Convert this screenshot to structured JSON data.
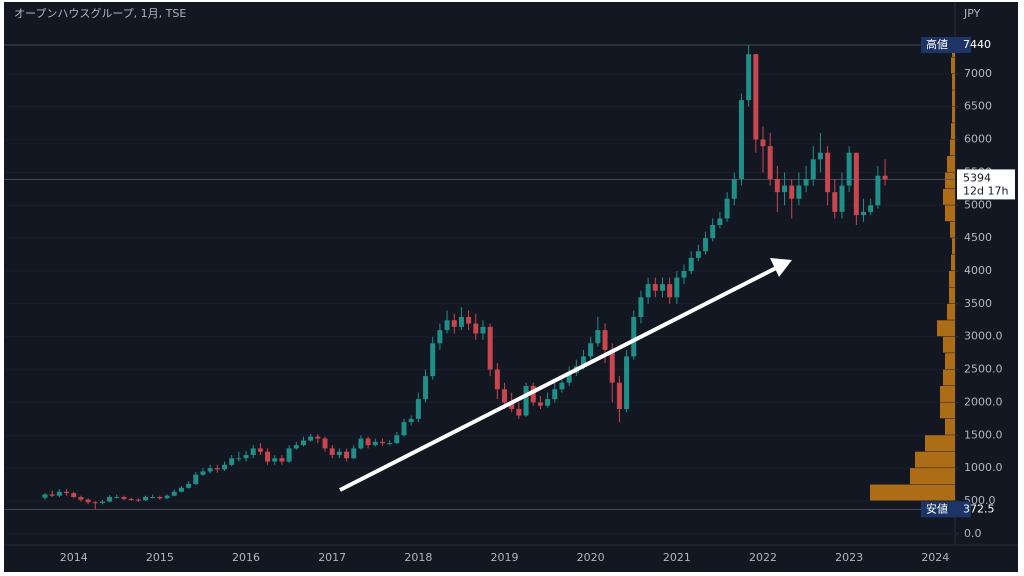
{
  "chart_data": {
    "type": "candlestick",
    "title": "オープンハウスグループ, 1月, TSE",
    "currency": "JPY",
    "categories": [
      null,
      null,
      null,
      null,
      "2014",
      null,
      null,
      null,
      null,
      null,
      null,
      null,
      null,
      null,
      null,
      null,
      "2015",
      null,
      null,
      null,
      null,
      null,
      null,
      null,
      null,
      null,
      null,
      null,
      "2016",
      null,
      null,
      null,
      null,
      null,
      null,
      null,
      null,
      null,
      null,
      null,
      "2017",
      null,
      null,
      null,
      null,
      null,
      null,
      null,
      null,
      null,
      null,
      null,
      "2018",
      null,
      null,
      null,
      null,
      null,
      null,
      null,
      null,
      null,
      null,
      null,
      "2019",
      null,
      null,
      null,
      null,
      null,
      null,
      null,
      null,
      null,
      null,
      null,
      "2020",
      null,
      null,
      null,
      null,
      null,
      null,
      null,
      null,
      null,
      null,
      null,
      "2021",
      null,
      null,
      null,
      null,
      null,
      null,
      null,
      null,
      null,
      null,
      null,
      "2022",
      null,
      null,
      null,
      null,
      null,
      null,
      null,
      null,
      null,
      null,
      null,
      "2023",
      null,
      null,
      null,
      null,
      null,
      null,
      null,
      null,
      null,
      null,
      null,
      "2024"
    ],
    "open": [
      550,
      600,
      580,
      640,
      620,
      560,
      520,
      480,
      470,
      490,
      560,
      560,
      530,
      520,
      510,
      560,
      560,
      540,
      580,
      640,
      700,
      760,
      900,
      950,
      1000,
      980,
      1050,
      1150,
      1150,
      1200,
      1300,
      1250,
      1100,
      1150,
      1100,
      1300,
      1350,
      1420,
      1480,
      1450,
      1300,
      1200,
      1250,
      1150,
      1300,
      1450,
      1350,
      1400,
      1380,
      1380,
      1500,
      1700,
      1750,
      2050,
      2400,
      2900,
      3100,
      3250,
      3150,
      3300,
      3200,
      3050,
      3150,
      2500,
      2200,
      2000,
      1900,
      1800,
      2250,
      2000,
      1950,
      2050,
      2200,
      2300,
      2450,
      2550,
      2700,
      2900,
      3100,
      2800,
      2300,
      1900,
      2700,
      3300,
      3600,
      3800,
      3700,
      3800,
      3600,
      3900,
      4000,
      4200,
      4300,
      4500,
      4700,
      4800,
      5100,
      5400,
      6600,
      7300,
      6000,
      5900,
      5400,
      5200,
      5300,
      5100,
      5300,
      5400,
      5700,
      5800,
      5200,
      4900,
      5300,
      5800,
      4850,
      4900,
      5000,
      5450,
      null,
      null,
      null,
      null,
      null,
      null,
      null
    ],
    "high": [
      620,
      660,
      680,
      680,
      640,
      580,
      540,
      500,
      520,
      590,
      600,
      580,
      550,
      540,
      580,
      600,
      580,
      600,
      670,
      730,
      800,
      940,
      1000,
      1050,
      1050,
      1100,
      1200,
      1250,
      1260,
      1350,
      1380,
      1300,
      1200,
      1200,
      1350,
      1400,
      1480,
      1520,
      1520,
      1480,
      1350,
      1300,
      1300,
      1350,
      1500,
      1480,
      1450,
      1450,
      1420,
      1550,
      1750,
      1800,
      2150,
      2500,
      3000,
      3200,
      3400,
      3350,
      3450,
      3400,
      3350,
      3250,
      3200,
      2600,
      2300,
      2150,
      2000,
      2300,
      2300,
      2100,
      2150,
      2300,
      2400,
      2550,
      2650,
      2800,
      3000,
      3300,
      3200,
      2900,
      2400,
      2800,
      3400,
      3700,
      3900,
      3900,
      3900,
      3900,
      4000,
      4100,
      4300,
      4400,
      4600,
      4800,
      4900,
      5200,
      5500,
      6700,
      7440,
      7300,
      6200,
      6100,
      5600,
      5500,
      5400,
      5500,
      5600,
      5900,
      6100,
      5900,
      5400,
      5500,
      5900,
      5800,
      5100,
      5100,
      5600,
      5700,
      null,
      null,
      null,
      null,
      null,
      null,
      null
    ],
    "low": [
      520,
      560,
      560,
      580,
      540,
      490,
      450,
      372.5,
      450,
      480,
      540,
      510,
      500,
      490,
      500,
      540,
      520,
      530,
      570,
      630,
      690,
      740,
      880,
      920,
      930,
      960,
      1030,
      1100,
      1100,
      1150,
      1200,
      1050,
      1050,
      1050,
      1080,
      1280,
      1330,
      1400,
      1380,
      1250,
      1150,
      1150,
      1100,
      1140,
      1280,
      1300,
      1330,
      1340,
      1350,
      1370,
      1480,
      1650,
      1700,
      2000,
      2350,
      2800,
      3050,
      3050,
      3100,
      3100,
      2950,
      2950,
      2400,
      2050,
      1900,
      1850,
      1750,
      1780,
      1950,
      1900,
      1920,
      2000,
      2150,
      2250,
      2400,
      2500,
      2650,
      2850,
      2600,
      2000,
      1700,
      1850,
      2650,
      3200,
      3500,
      3600,
      3600,
      3500,
      3500,
      3800,
      3950,
      4150,
      4250,
      4450,
      4650,
      4750,
      5000,
      5300,
      6500,
      5800,
      5500,
      5300,
      4900,
      5000,
      4800,
      5000,
      5200,
      5300,
      5500,
      5000,
      4800,
      4800,
      5200,
      4700,
      4750,
      4850,
      4950,
      5300,
      null,
      null,
      null,
      null,
      null,
      null,
      null
    ],
    "close": [
      600,
      580,
      640,
      620,
      560,
      520,
      480,
      470,
      490,
      560,
      560,
      530,
      520,
      510,
      560,
      560,
      540,
      580,
      640,
      700,
      760,
      900,
      950,
      1000,
      980,
      1050,
      1150,
      1150,
      1200,
      1300,
      1250,
      1100,
      1150,
      1100,
      1300,
      1350,
      1420,
      1480,
      1450,
      1300,
      1200,
      1250,
      1150,
      1300,
      1450,
      1350,
      1400,
      1380,
      1380,
      1500,
      1700,
      1750,
      2050,
      2400,
      2900,
      3100,
      3250,
      3150,
      3300,
      3200,
      3050,
      3150,
      2500,
      2200,
      2000,
      1900,
      1800,
      2250,
      2000,
      1950,
      2050,
      2200,
      2300,
      2450,
      2550,
      2700,
      2900,
      3100,
      2800,
      2300,
      1900,
      2700,
      3300,
      3600,
      3800,
      3700,
      3800,
      3600,
      3900,
      4000,
      4200,
      4300,
      4500,
      4700,
      4800,
      5100,
      5400,
      6600,
      7300,
      6000,
      5900,
      5400,
      5200,
      5300,
      5100,
      5300,
      5400,
      5700,
      5800,
      5200,
      4900,
      5300,
      5800,
      4850,
      4900,
      5000,
      5450,
      5394,
      null,
      null,
      null,
      null,
      null,
      null,
      null
    ],
    "up_color": "#1f8f88",
    "down_color": "#c8474f",
    "ylim": [
      -170,
      7820
    ],
    "yticks": [
      {
        "value": 0,
        "label": "0.0"
      },
      {
        "value": 500,
        "label": "500.0"
      },
      {
        "value": 1000,
        "label": "1000.0"
      },
      {
        "value": 1500,
        "label": "1500.0"
      },
      {
        "value": 2000,
        "label": "2000.0"
      },
      {
        "value": 2500,
        "label": "2500.0"
      },
      {
        "value": 3000,
        "label": "3000.0"
      },
      3500,
      4000,
      4500,
      5000,
      5500,
      6000,
      6500,
      7000
    ],
    "grid": true,
    "high_marker": {
      "label": "高値",
      "value": 7440
    },
    "low_marker": {
      "label": "安値",
      "value": 372.5
    },
    "last": {
      "value": 5394,
      "countdown": "12d 17h"
    },
    "volume_profile": {
      "color": "#c97c14",
      "bins": [
        500,
        750,
        1000,
        1250,
        1500,
        1750,
        2000,
        2250,
        2500,
        2750,
        3000,
        3250,
        3500,
        3750,
        4000,
        4250,
        4500,
        4750,
        5000,
        5250,
        5500,
        5750,
        6000,
        6250,
        6500,
        6750,
        7000,
        7250,
        7500
      ],
      "values": [
        85,
        45,
        40,
        30,
        10,
        15,
        15,
        12,
        10,
        12,
        18,
        8,
        6,
        6,
        4,
        3,
        5,
        10,
        12,
        10,
        8,
        5,
        4,
        3,
        3,
        3,
        4,
        3
      ]
    }
  }
}
